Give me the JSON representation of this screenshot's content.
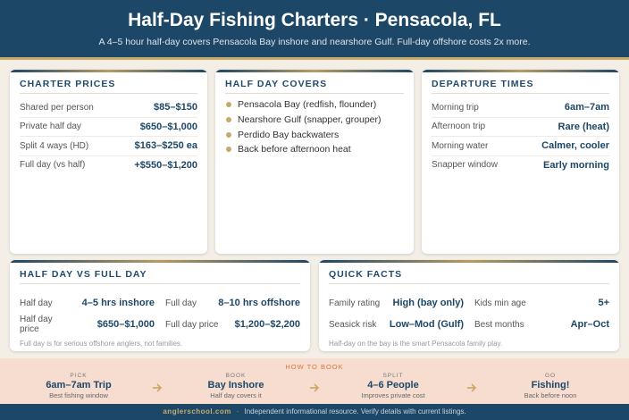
{
  "header": {
    "title": "Half-Day Fishing Charters · Pensacola, FL",
    "subtitle": "A 4–5 hour half-day covers Pensacola Bay inshore and nearshore Gulf. Full-day offshore costs 2x more."
  },
  "charter_prices": {
    "title": "CHARTER PRICES",
    "rows": [
      [
        "Shared per person",
        "$85–$150"
      ],
      [
        "Private half day",
        "$650–$1,000"
      ],
      [
        "Split 4 ways (HD)",
        "$163–$250 ea"
      ],
      [
        "Full day (vs half)",
        "+$550–$1,200"
      ]
    ]
  },
  "half_day_covers": {
    "title": "HALF DAY COVERS",
    "items": [
      "Pensacola Bay (redfish, flounder)",
      "Nearshore Gulf (snapper, grouper)",
      "Perdido Bay backwaters",
      "Back before afternoon heat"
    ]
  },
  "departure_times": {
    "title": "DEPARTURE TIMES",
    "rows": [
      [
        "Morning trip",
        "6am–7am"
      ],
      [
        "Afternoon trip",
        "Rare (heat)"
      ],
      [
        "Morning water",
        "Calmer, cooler"
      ],
      [
        "Snapper window",
        "Early morning"
      ]
    ]
  },
  "half_vs_full": {
    "title": "HALF DAY VS FULL DAY",
    "rows": [
      [
        "Half day",
        "4–5 hrs inshore",
        "Full day",
        "8–10 hrs offshore"
      ],
      [
        "Half day price",
        "$650–$1,000",
        "Full day price",
        "$1,200–$2,200"
      ]
    ],
    "note": "Full day is for serious offshore anglers, not families."
  },
  "quick_facts": {
    "title": "QUICK FACTS",
    "rows": [
      [
        "Family rating",
        "High (bay only)",
        "Kids min age",
        "5+"
      ],
      [
        "Seasick risk",
        "Low–Mod (Gulf)",
        "Best months",
        "Apr–Oct"
      ]
    ],
    "note": "Half-day on the bay is the smart Pensacola family play."
  },
  "how_to_book": {
    "title": "HOW TO BOOK",
    "steps": [
      {
        "label": "PICK",
        "title": "6am–7am Trip",
        "detail": "Best fishing window"
      },
      {
        "label": "BOOK",
        "title": "Bay Inshore",
        "detail": "Half day covers it"
      },
      {
        "label": "SPLIT",
        "title": "4–6 People",
        "detail": "Improves private cost"
      },
      {
        "label": "GO",
        "title": "Fishing!",
        "detail": "Back before noon"
      }
    ]
  },
  "footer": {
    "site": "anglerschool.com",
    "separator": "·",
    "text": "Independent informational resource. Verify details with current listings."
  }
}
